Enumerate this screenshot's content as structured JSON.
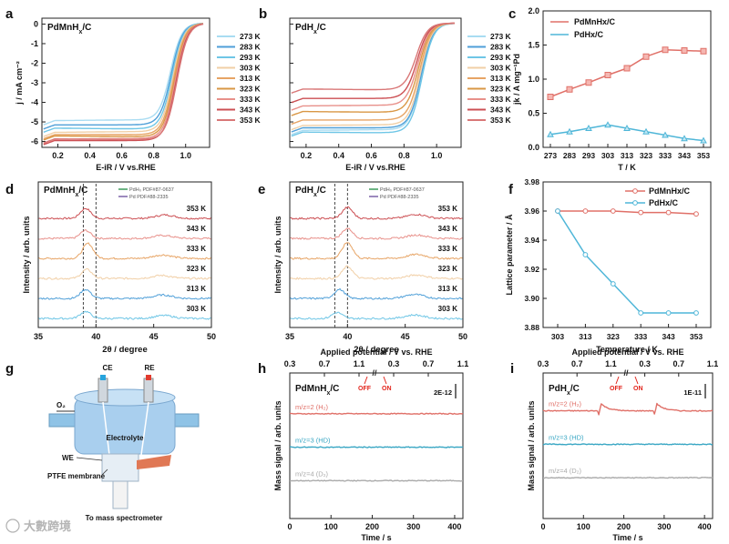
{
  "figure": {
    "watermark": "大數跨境"
  },
  "colors": {
    "temps": [
      "#a9dcf2",
      "#4f9fd8",
      "#6fc6e6",
      "#f1cfa6",
      "#e7a465",
      "#d99745",
      "#e8908a",
      "#cc4f53",
      "#d97777"
    ],
    "pdmnhx": "#e07068",
    "pdhx": "#4fb6d8",
    "hd": "#3aa7c4",
    "d2": "#aaaaaa",
    "off_on": "#e2231a",
    "ref_green": "#3c9a5b",
    "ref_purple": "#7b62a8"
  },
  "panels": {
    "a": {
      "letter": "a",
      "label": "PdMnH",
      "label_sub": "x",
      "label_tail": "/C",
      "xlabel": "E-iR / V vs.RHE",
      "ylabel": "j / mA cm⁻²"
    },
    "b": {
      "letter": "b",
      "label": "PdH",
      "label_sub": "x",
      "label_tail": "/C",
      "xlabel": "E-iR / V vs.RHE",
      "ylabel": ""
    },
    "c": {
      "letter": "c",
      "xlabel": "T / K",
      "ylabel": "jk / A mg⁻¹Pd"
    },
    "d": {
      "letter": "d",
      "label": "PdMnH",
      "label_sub": "x",
      "label_tail": "/C",
      "xlabel": "2θ / degree",
      "ylabel": "Intensity / arb. units",
      "ref1": "PdH₀ PDF#87-0637",
      "ref2": "Pd PDF#88-2335"
    },
    "e": {
      "letter": "e",
      "label": "PdH",
      "label_sub": "x",
      "label_tail": "/C",
      "xlabel": "2θ / degree",
      "ylabel": "Intensity / arb. units",
      "ref1": "PdH₀ PDF#87-0637",
      "ref2": "Pd PDF#88-2335"
    },
    "f": {
      "letter": "f",
      "xlabel": "Temperature / K",
      "ylabel": "Lattice parameter / Å"
    },
    "g": {
      "letter": "g",
      "ce": "CE",
      "re": "RE",
      "o2": "O₂",
      "electrolyte": "Electrolyte",
      "we": "WE",
      "membrane": "PTFE membrane",
      "ms": "To mass spectrometer"
    },
    "h": {
      "letter": "h",
      "label": "PdMnH",
      "label_sub": "x",
      "label_tail": "/C",
      "top_label": "Applied potential / V vs. RHE",
      "xlabel": "Time / s",
      "ylabel": "Mass signal / arb. units",
      "scale": "2E-12",
      "off": "OFF",
      "on": "ON"
    },
    "i": {
      "letter": "i",
      "label": "PdH",
      "label_sub": "x",
      "label_tail": "/C",
      "top_label": "Applied potential / V vs. RHE",
      "xlabel": "Time / s",
      "ylabel": "Mass signal / arb. units",
      "scale": "1E-11",
      "off": "OFF",
      "on": "ON"
    }
  },
  "chart_data": [
    {
      "panel": "a",
      "type": "line",
      "title": "",
      "xlabel": "E-iR / V vs.RHE",
      "ylabel": "j / mA cm⁻²",
      "xlim": [
        0.1,
        1.15
      ],
      "ylim": [
        -6.3,
        0.3
      ],
      "xticks": [
        0.2,
        0.4,
        0.6,
        0.8,
        1.0
      ],
      "yticks": [
        0,
        -1,
        -2,
        -3,
        -4,
        -5,
        -6
      ],
      "legend_position": "right",
      "series": [
        {
          "name": "273 K",
          "plateau": -4.95,
          "half_wave": 0.905
        },
        {
          "name": "283 K",
          "plateau": -5.2,
          "half_wave": 0.91
        },
        {
          "name": "293 K",
          "plateau": -5.4,
          "half_wave": 0.915
        },
        {
          "name": "303 K",
          "plateau": -5.55,
          "half_wave": 0.92
        },
        {
          "name": "313 K",
          "plateau": -5.7,
          "half_wave": 0.925
        },
        {
          "name": "323 K",
          "plateau": -5.8,
          "half_wave": 0.93
        },
        {
          "name": "333 K",
          "plateau": -5.9,
          "half_wave": 0.935
        },
        {
          "name": "343 K",
          "plateau": -6.0,
          "half_wave": 0.94
        },
        {
          "name": "353 K",
          "plateau": -5.95,
          "half_wave": 0.945
        }
      ]
    },
    {
      "panel": "b",
      "type": "line",
      "title": "",
      "xlabel": "E-iR / V vs.RHE",
      "ylabel": "",
      "xlim": [
        0.1,
        1.15
      ],
      "ylim": [
        -6.3,
        0.3
      ],
      "xticks": [
        0.2,
        0.4,
        0.6,
        0.8,
        1.0
      ],
      "yticks": [
        0,
        -1,
        -2,
        -3,
        -4,
        -5,
        -6
      ],
      "legend_position": "right",
      "series": [
        {
          "name": "273 K",
          "plateau": -5.45,
          "half_wave": 0.905
        },
        {
          "name": "283 K",
          "plateau": -5.35,
          "half_wave": 0.905
        },
        {
          "name": "293 K",
          "plateau": -5.6,
          "half_wave": 0.91
        },
        {
          "name": "303 K",
          "plateau": -5.2,
          "half_wave": 0.9
        },
        {
          "name": "313 K",
          "plateau": -4.95,
          "half_wave": 0.895
        },
        {
          "name": "323 K",
          "plateau": -4.55,
          "half_wave": 0.89
        },
        {
          "name": "333 K",
          "plateau": -4.2,
          "half_wave": 0.885
        },
        {
          "name": "343 K",
          "plateau": -3.85,
          "half_wave": 0.88
        },
        {
          "name": "353 K",
          "plateau": -3.4,
          "half_wave": 0.875
        }
      ]
    },
    {
      "panel": "c",
      "type": "line",
      "title": "",
      "xlabel": "T / K",
      "ylabel": "jk / A mg⁻¹Pd",
      "categories": [
        "273",
        "283",
        "293",
        "303",
        "313",
        "323",
        "333",
        "343",
        "353"
      ],
      "ylim": [
        0,
        2.0
      ],
      "yticks": [
        0.0,
        0.5,
        1.0,
        1.5,
        2.0
      ],
      "legend_position": "top-left",
      "series": [
        {
          "name": "PdMnHx/C",
          "values": [
            0.74,
            0.85,
            0.95,
            1.06,
            1.16,
            1.33,
            1.43,
            1.42,
            1.41
          ]
        },
        {
          "name": "PdHx/C",
          "values": [
            0.19,
            0.23,
            0.28,
            0.33,
            0.28,
            0.23,
            0.18,
            0.13,
            0.1
          ]
        }
      ]
    },
    {
      "panel": "d",
      "type": "line",
      "title": "",
      "xlabel": "2θ / degree",
      "ylabel": "Intensity / arb. units",
      "xlim": [
        35,
        50
      ],
      "xticks": [
        35,
        40,
        45,
        50
      ],
      "reference_lines": [
        38.9,
        40.0
      ],
      "series": [
        {
          "name": "353 K",
          "peaks": [
            39.1,
            46.0
          ],
          "peak_height": [
            1.0,
            0.35
          ]
        },
        {
          "name": "343 K",
          "peaks": [
            39.1,
            45.8
          ],
          "peak_height": [
            0.8,
            0.3
          ]
        },
        {
          "name": "333 K",
          "peaks": [
            39.3,
            45.8
          ],
          "peak_height": [
            1.5,
            0.35
          ]
        },
        {
          "name": "323 K",
          "peaks": [
            39.2,
            45.7
          ],
          "peak_height": [
            0.9,
            0.3
          ]
        },
        {
          "name": "313 K",
          "peaks": [
            39.1,
            45.8
          ],
          "peak_height": [
            0.9,
            0.35
          ]
        },
        {
          "name": "303 K",
          "peaks": [
            39.1,
            45.9
          ],
          "peak_height": [
            0.7,
            0.3
          ]
        }
      ]
    },
    {
      "panel": "e",
      "type": "line",
      "title": "",
      "xlabel": "2θ / degree",
      "ylabel": "Intensity / arb. units",
      "xlim": [
        35,
        50
      ],
      "xticks": [
        35,
        40,
        45,
        50
      ],
      "reference_lines": [
        38.9,
        40.0
      ],
      "series": [
        {
          "name": "353 K",
          "peaks": [
            40.0,
            46.0
          ],
          "peak_height": [
            1.1,
            0.4
          ]
        },
        {
          "name": "343 K",
          "peaks": [
            40.0,
            46.0
          ],
          "peak_height": [
            1.0,
            0.35
          ]
        },
        {
          "name": "333 K",
          "peaks": [
            40.0,
            46.0
          ],
          "peak_height": [
            1.6,
            0.4
          ]
        },
        {
          "name": "323 K",
          "peaks": [
            40.0,
            46.0
          ],
          "peak_height": [
            1.2,
            0.35
          ]
        },
        {
          "name": "313 K",
          "peaks": [
            39.3,
            45.8
          ],
          "peak_height": [
            0.9,
            0.4
          ]
        },
        {
          "name": "303 K",
          "peaks": [
            39.1,
            45.8
          ],
          "peak_height": [
            0.6,
            0.35
          ]
        }
      ]
    },
    {
      "panel": "f",
      "type": "line",
      "title": "",
      "xlabel": "Temperature / K",
      "ylabel": "Lattice parameter / Å",
      "categories": [
        "303",
        "313",
        "323",
        "333",
        "343",
        "353"
      ],
      "ylim": [
        3.88,
        3.98
      ],
      "yticks": [
        3.88,
        3.9,
        3.92,
        3.94,
        3.96,
        3.98
      ],
      "legend_position": "top-right",
      "series": [
        {
          "name": "PdMnHx/C",
          "values": [
            3.96,
            3.96,
            3.96,
            3.959,
            3.959,
            3.958
          ]
        },
        {
          "name": "PdHx/C",
          "values": [
            3.96,
            3.93,
            3.91,
            3.89,
            3.89,
            3.89
          ]
        }
      ]
    },
    {
      "panel": "h",
      "type": "line",
      "title": "",
      "xlabel": "Time / s",
      "ylabel": "Mass signal / arb. units",
      "xlim": [
        0,
        420
      ],
      "xticks": [
        0,
        100,
        200,
        300,
        400
      ],
      "top_axis": {
        "label": "Applied potential / V vs. RHE",
        "ticks": [
          "0.3",
          "0.7",
          "1.1",
          "0.3",
          "0.7",
          "1.1"
        ]
      },
      "series": [
        {
          "name": "m/z=2 (H₂)",
          "level": 0.72,
          "spikes": []
        },
        {
          "name": "m/z=3 (HD)",
          "level": 0.49,
          "spikes": []
        },
        {
          "name": "m/z=4 (D₂)",
          "level": 0.26,
          "spikes": []
        }
      ]
    },
    {
      "panel": "i",
      "type": "line",
      "title": "",
      "xlabel": "Time / s",
      "ylabel": "Mass signal / arb. units",
      "xlim": [
        0,
        420
      ],
      "xticks": [
        0,
        100,
        200,
        300,
        400
      ],
      "top_axis": {
        "label": "Applied potential / V vs. RHE",
        "ticks": [
          "0.3",
          "0.7",
          "1.1",
          "0.3",
          "0.7",
          "1.1"
        ]
      },
      "series": [
        {
          "name": "m/z=2 (H₂)",
          "level": 0.74,
          "spikes": [
            140,
            278
          ]
        },
        {
          "name": "m/z=3 (HD)",
          "level": 0.51,
          "spikes": []
        },
        {
          "name": "m/z=4 (D₂)",
          "level": 0.28,
          "spikes": []
        }
      ]
    }
  ]
}
